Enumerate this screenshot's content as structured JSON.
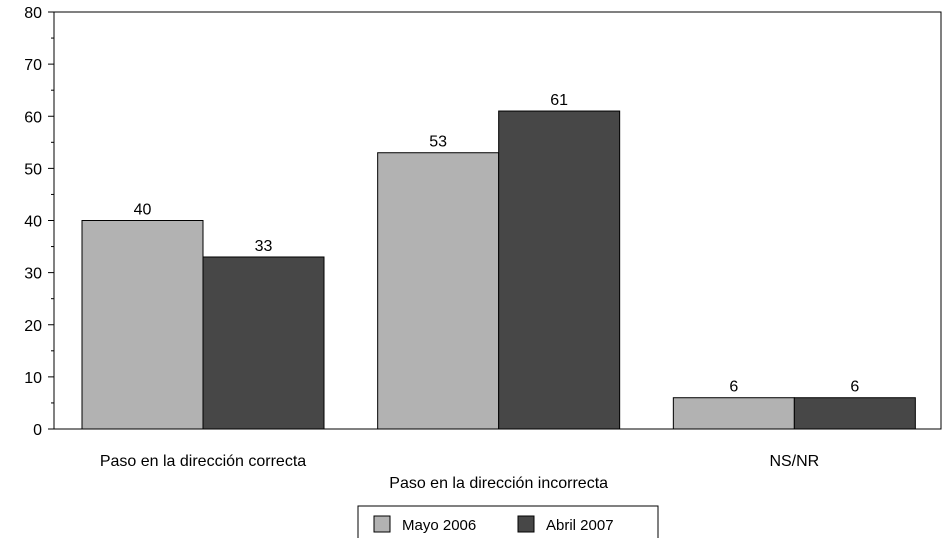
{
  "chart_data": {
    "type": "bar",
    "categories": [
      "Paso en la dirección correcta",
      "Paso en la dirección incorrecta",
      "NS/NR"
    ],
    "series": [
      {
        "name": "Mayo 2006",
        "values": [
          40,
          53,
          6
        ],
        "color": "#b2b2b2"
      },
      {
        "name": "Abril 2007",
        "values": [
          33,
          61,
          6
        ],
        "color": "#474747"
      }
    ],
    "ylim": [
      0,
      80
    ],
    "yticks": [
      0,
      10,
      20,
      30,
      40,
      50,
      60,
      70,
      80
    ],
    "grid": false,
    "legend_position": "bottom-center",
    "data_labels": true
  }
}
